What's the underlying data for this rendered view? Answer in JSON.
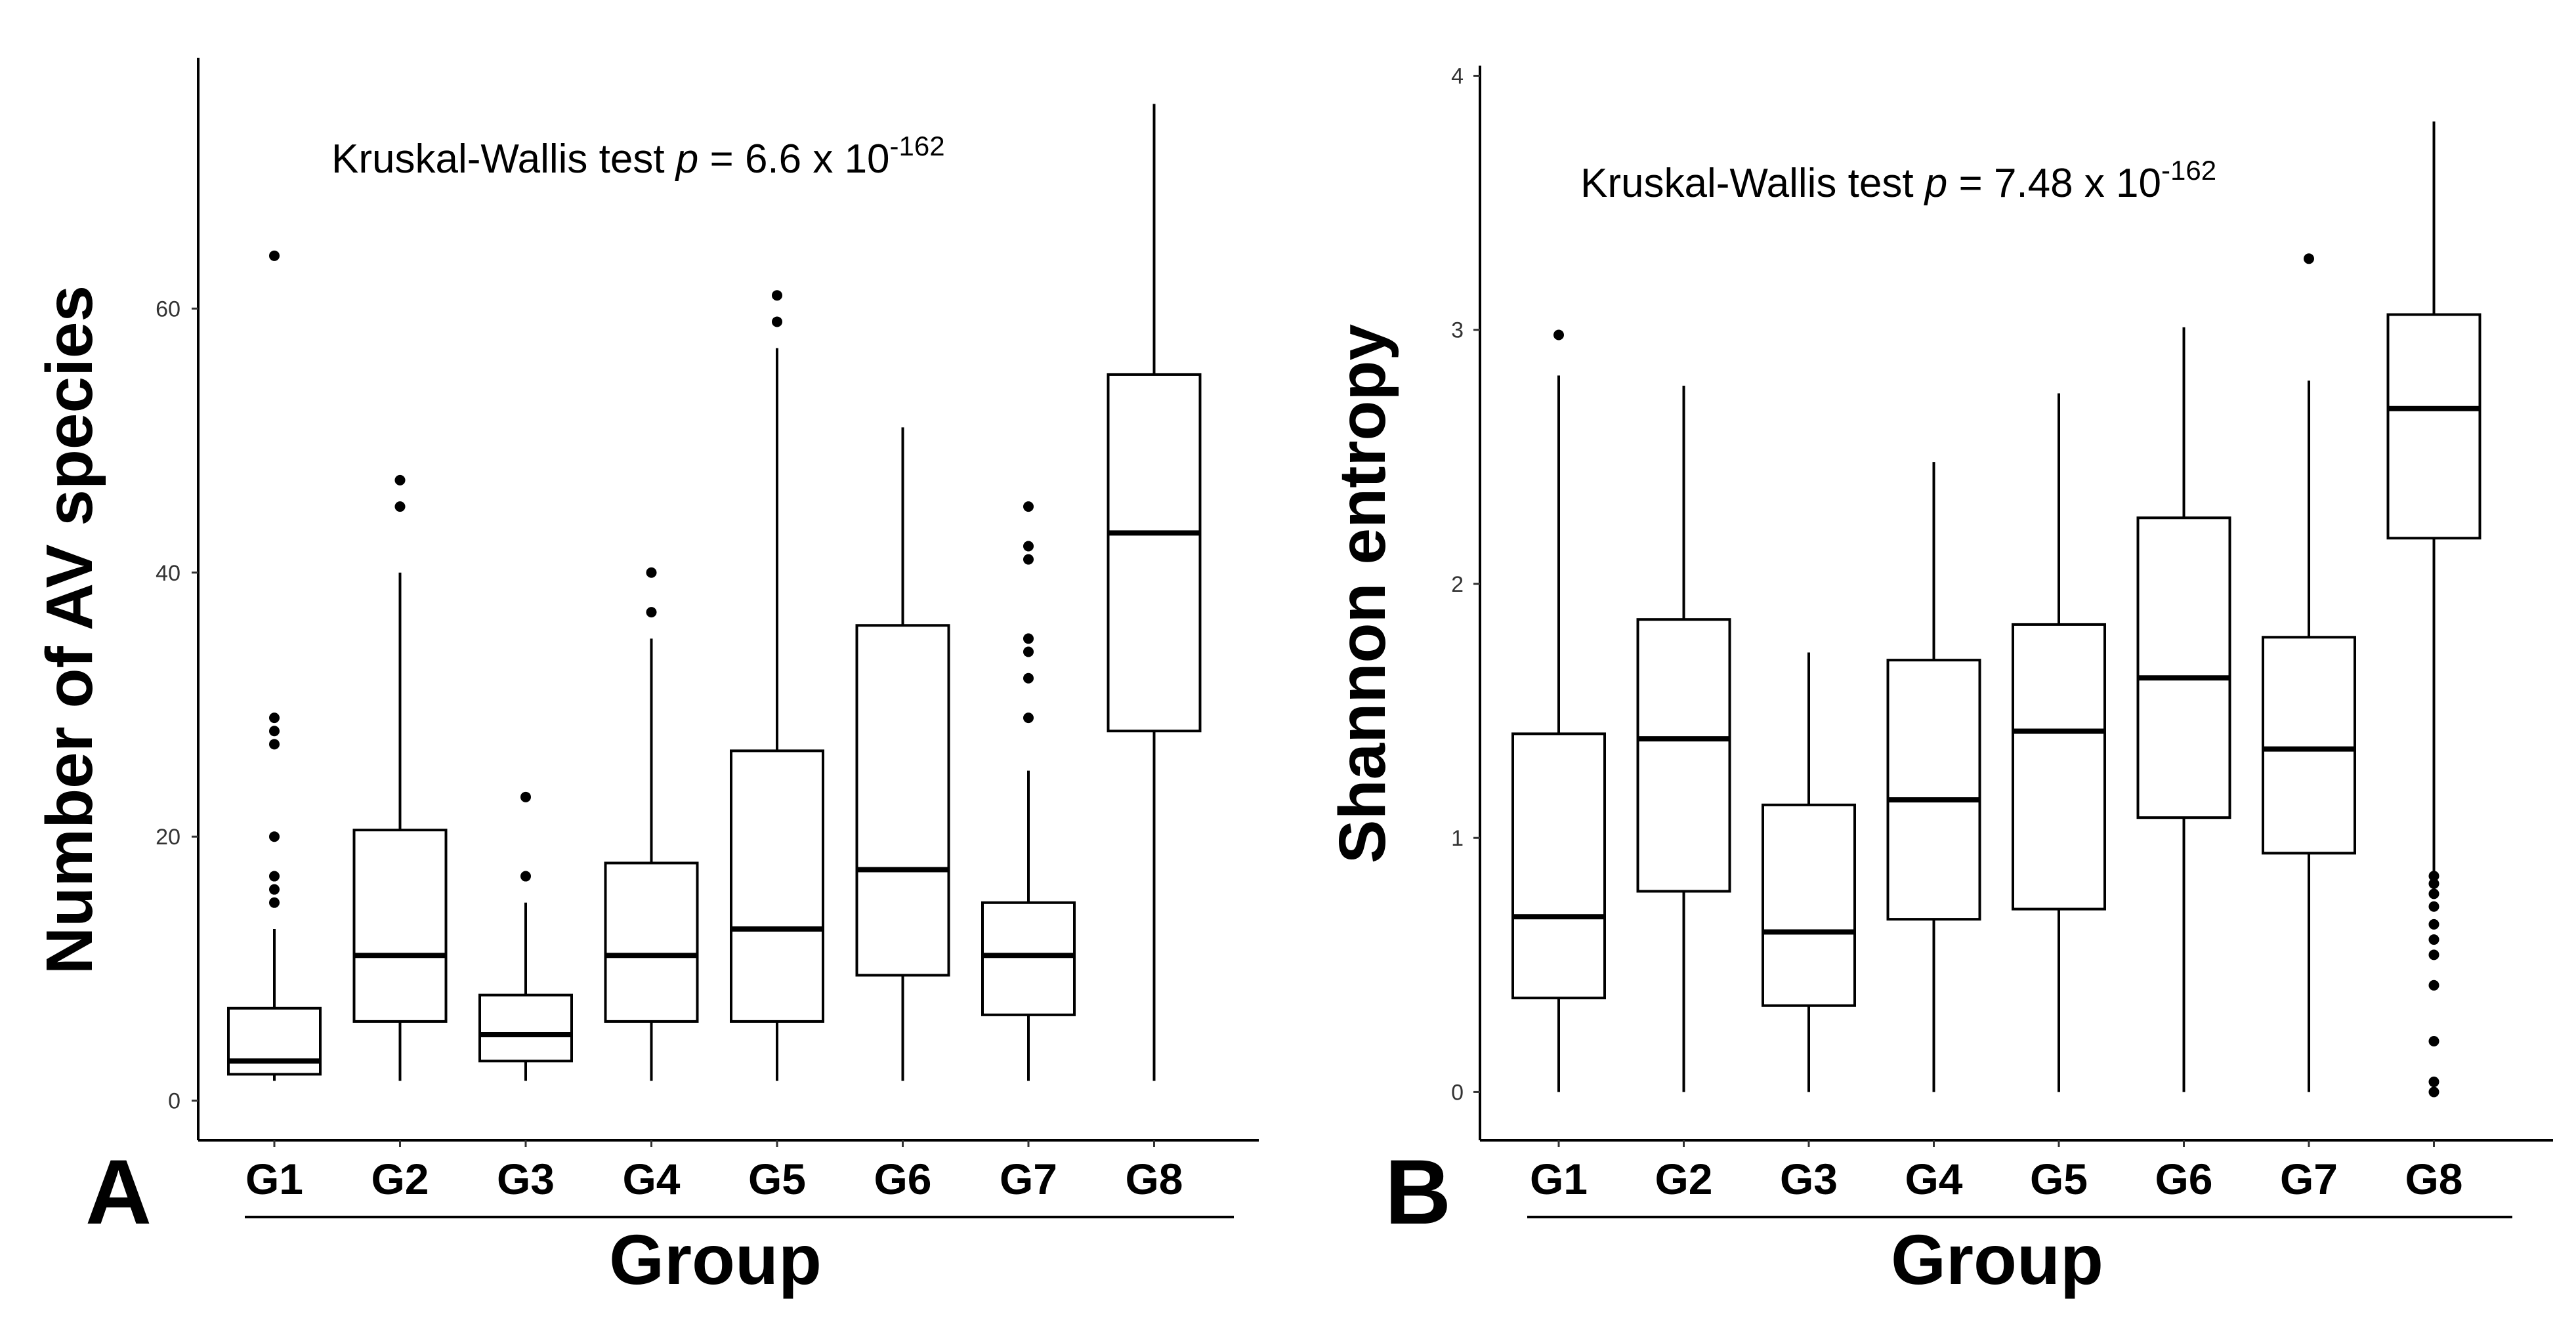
{
  "chart_data": [
    {
      "type": "boxplot",
      "panel_label": "A",
      "xlabel": "Group",
      "ylabel": "Number of AV species",
      "ylim": [
        -3,
        79
      ],
      "yticks": [
        0,
        20,
        40,
        60
      ],
      "grid": false,
      "annotation": {
        "prefix": "Kruskal-Wallis test ",
        "italic": "p",
        "middle": " = 6.6 x 10",
        "sup": "-162"
      },
      "categories": [
        "G1",
        "G2",
        "G3",
        "G4",
        "G5",
        "G6",
        "G7",
        "G8"
      ],
      "boxes": [
        {
          "group": "G1",
          "whisker_low": 1.5,
          "q1": 2,
          "median": 3,
          "q3": 7,
          "whisker_high": 13,
          "outliers": [
            15,
            16,
            17,
            20,
            27,
            28,
            29,
            64
          ]
        },
        {
          "group": "G2",
          "whisker_low": 1.5,
          "q1": 6,
          "median": 11,
          "q3": 20.5,
          "whisker_high": 40,
          "outliers": [
            45,
            47
          ]
        },
        {
          "group": "G3",
          "whisker_low": 1.5,
          "q1": 3,
          "median": 5,
          "q3": 8,
          "whisker_high": 15,
          "outliers": [
            17,
            23
          ]
        },
        {
          "group": "G4",
          "whisker_low": 1.5,
          "q1": 6,
          "median": 11,
          "q3": 18,
          "whisker_high": 35,
          "outliers": [
            37,
            40
          ]
        },
        {
          "group": "G5",
          "whisker_low": 1.5,
          "q1": 6,
          "median": 13,
          "q3": 26.5,
          "whisker_high": 57,
          "outliers": [
            59,
            61
          ]
        },
        {
          "group": "G6",
          "whisker_low": 1.5,
          "q1": 9.5,
          "median": 17.5,
          "q3": 36,
          "whisker_high": 51,
          "outliers": []
        },
        {
          "group": "G7",
          "whisker_low": 1.5,
          "q1": 6.5,
          "median": 11,
          "q3": 15,
          "whisker_high": 25,
          "outliers": [
            29,
            32,
            34,
            35,
            41,
            42,
            45
          ]
        },
        {
          "group": "G8",
          "whisker_low": 1.5,
          "q1": 28,
          "median": 43,
          "q3": 55,
          "whisker_high": 75.5,
          "outliers": []
        }
      ]
    },
    {
      "type": "boxplot",
      "panel_label": "B",
      "xlabel": "Group",
      "ylabel": "Shannon entropy",
      "ylim": [
        -0.19,
        4.04
      ],
      "yticks": [
        0,
        1,
        2,
        3,
        4
      ],
      "grid": false,
      "annotation": {
        "prefix": "Kruskal-Wallis test ",
        "italic": "p",
        "middle": " = 7.48 x 10",
        "sup": "-162"
      },
      "categories": [
        "G1",
        "G2",
        "G3",
        "G4",
        "G5",
        "G6",
        "G7",
        "G8"
      ],
      "boxes": [
        {
          "group": "G1",
          "whisker_low": 0,
          "q1": 0.37,
          "median": 0.69,
          "q3": 1.41,
          "whisker_high": 2.82,
          "outliers": [
            2.98
          ]
        },
        {
          "group": "G2",
          "whisker_low": 0,
          "q1": 0.79,
          "median": 1.39,
          "q3": 1.86,
          "whisker_high": 2.78,
          "outliers": []
        },
        {
          "group": "G3",
          "whisker_low": 0,
          "q1": 0.34,
          "median": 0.63,
          "q3": 1.13,
          "whisker_high": 1.73,
          "outliers": []
        },
        {
          "group": "G4",
          "whisker_low": 0,
          "q1": 0.68,
          "median": 1.15,
          "q3": 1.7,
          "whisker_high": 2.48,
          "outliers": []
        },
        {
          "group": "G5",
          "whisker_low": 0,
          "q1": 0.72,
          "median": 1.42,
          "q3": 1.84,
          "whisker_high": 2.75,
          "outliers": []
        },
        {
          "group": "G6",
          "whisker_low": 0,
          "q1": 1.08,
          "median": 1.63,
          "q3": 2.26,
          "whisker_high": 3.01,
          "outliers": []
        },
        {
          "group": "G7",
          "whisker_low": 0,
          "q1": 0.94,
          "median": 1.35,
          "q3": 1.79,
          "whisker_high": 2.8,
          "outliers": [
            3.28
          ]
        },
        {
          "group": "G8",
          "whisker_low": 0.87,
          "q1": 2.18,
          "median": 2.69,
          "q3": 3.06,
          "whisker_high": 3.82,
          "outliers": [
            0.0,
            0.04,
            0.2,
            0.42,
            0.54,
            0.6,
            0.66,
            0.73,
            0.78,
            0.82,
            0.85
          ]
        }
      ]
    }
  ]
}
